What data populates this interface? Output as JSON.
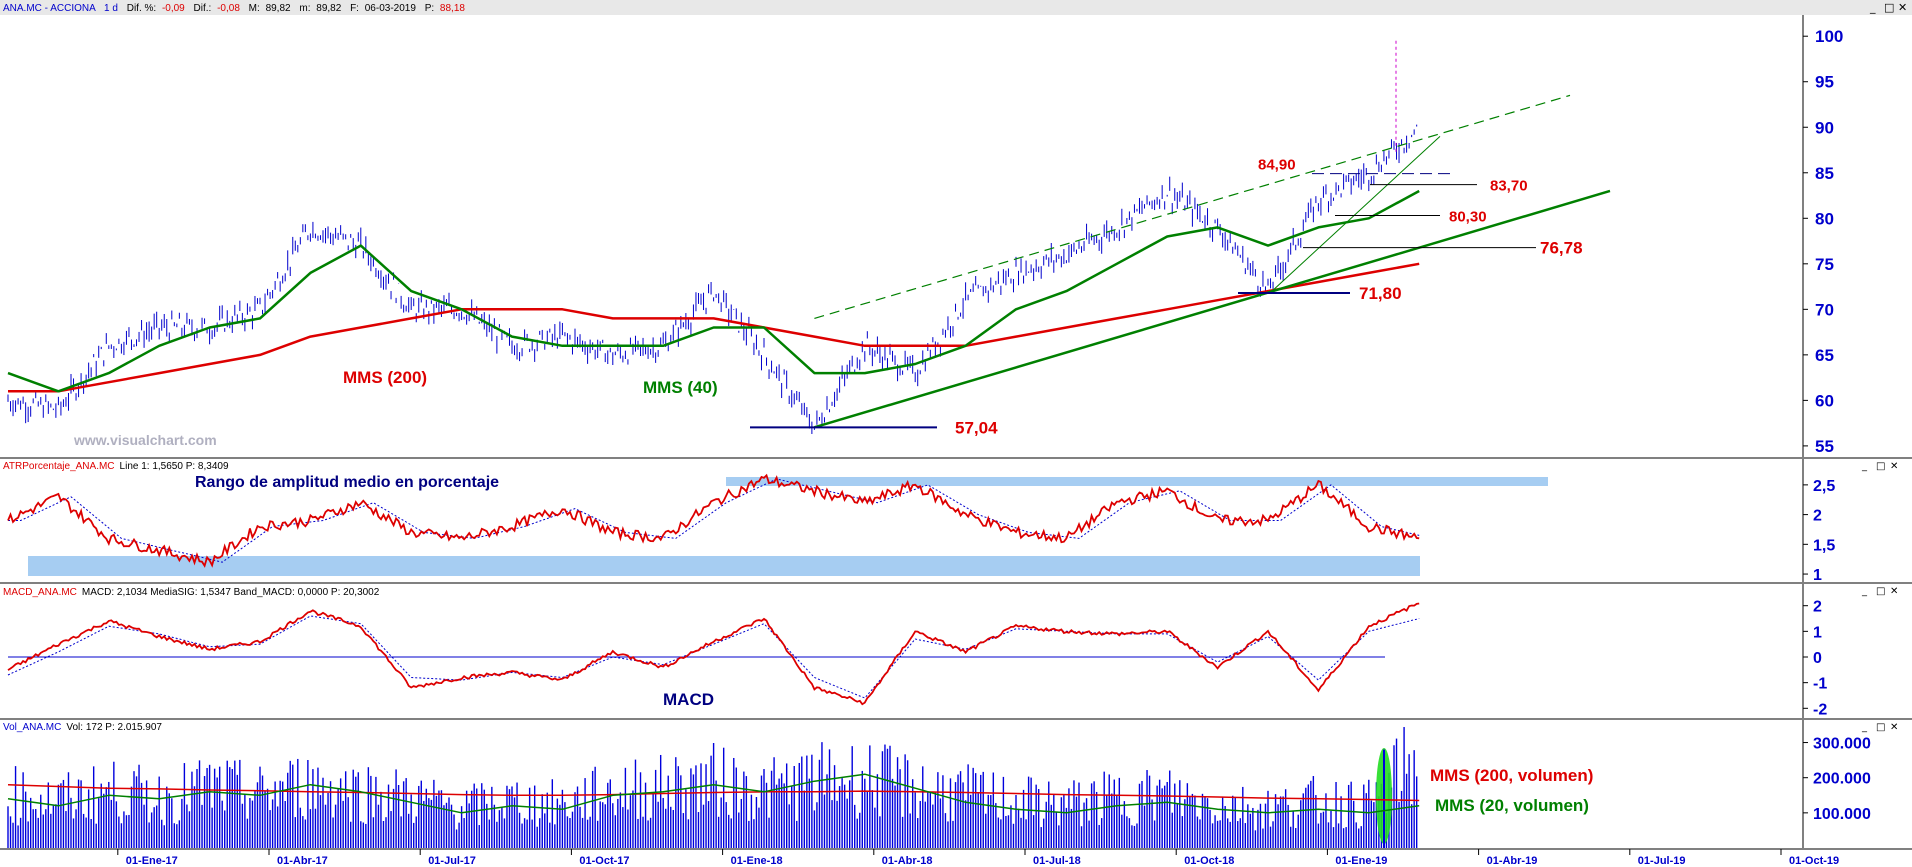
{
  "header": {
    "symbol": "ANA.MC - ACCIONA",
    "period": "1 d",
    "dif_pct_label": "Dif. %:",
    "dif_pct": "-0,09",
    "dif_label": "Dif.:",
    "dif": "-0,08",
    "max_label": "M:",
    "max": "89,82",
    "min_label": "m:",
    "min": "89,82",
    "date_label": "F:",
    "date": "06-03-2019",
    "price_label": "P:",
    "price": "88,18"
  },
  "panels": {
    "atr_title": "ATRPorcentaje_ANA.MC",
    "atr_values": "Line 1: 1,5650  P: 8,3409",
    "macd_title": "MACD_ANA.MC",
    "macd_values": "MACD: 2,1034 MediaSIG: 1,5347 Band_MACD: 0,0000 P: 20,3002",
    "vol_title": "Vol_ANA.MC",
    "vol_values": "Vol: 172  P: 2.015.907"
  },
  "window_controls": [
    "_",
    "□",
    "✕"
  ],
  "watermark": "www.visualchart.com",
  "annotations": {
    "mms200": "MMS (200)",
    "mms40": "MMS (40)",
    "atr_title": "Rango de amplitud medio en porcentaje",
    "macd": "MACD",
    "vol_mms200": "MMS (200, volumen)",
    "vol_mms20": "MMS (20, volumen)",
    "levels": [
      "84,90",
      "83,70",
      "80,30",
      "76,78",
      "71,80",
      "57,04"
    ]
  },
  "colors": {
    "price_bars": "#0000cc",
    "mms200": "#dd0000",
    "mms40": "#008000",
    "trendline": "#008000",
    "levels_text": "#dd0000",
    "axis_text": "#0000cc",
    "band": "#a6cdf2"
  },
  "chart_data": [
    {
      "type": "line",
      "title": "",
      "x_tick_labels": [
        "01-Ene-17",
        "01-Abr-17",
        "01-Jul-17",
        "01-Oct-17",
        "01-Ene-18",
        "01-Abr-18",
        "01-Jul-18",
        "01-Oct-18",
        "01-Ene-19",
        "01-Abr-19",
        "01-Jul-19",
        "01-Oct-19"
      ],
      "y_ticks": [
        55,
        60,
        65,
        70,
        75,
        80,
        85,
        90,
        95,
        100
      ],
      "ylim": [
        54,
        102
      ],
      "series": [
        {
          "name": "Price (bars)",
          "x": [
            "2016-11",
            "2016-12",
            "2017-01",
            "2017-02",
            "2017-03",
            "2017-04",
            "2017-05",
            "2017-06",
            "2017-07",
            "2017-08",
            "2017-09",
            "2017-10",
            "2017-11",
            "2017-12",
            "2018-01",
            "2018-02",
            "2018-03",
            "2018-04",
            "2018-05",
            "2018-06",
            "2018-07",
            "2018-08",
            "2018-09",
            "2018-10",
            "2018-11",
            "2018-12",
            "2019-01",
            "2019-02",
            "2019-03"
          ],
          "values": [
            60,
            59,
            66,
            68,
            68,
            70,
            79,
            77,
            70,
            70,
            66,
            67,
            65,
            66,
            72,
            65,
            57,
            66,
            63,
            71,
            74,
            76,
            79,
            83,
            79,
            72,
            82,
            85,
            90
          ]
        },
        {
          "name": "MMS (200)",
          "values": [
            61,
            61,
            62,
            63,
            64,
            65,
            67,
            68,
            69,
            70,
            70,
            70,
            69,
            69,
            69,
            68,
            67,
            66,
            66,
            66,
            67,
            68,
            69,
            70,
            71,
            72,
            73,
            74,
            75
          ]
        },
        {
          "name": "MMS (40)",
          "values": [
            63,
            61,
            63,
            66,
            68,
            69,
            74,
            77,
            72,
            70,
            67,
            66,
            66,
            66,
            68,
            68,
            63,
            63,
            64,
            66,
            70,
            72,
            75,
            78,
            79,
            77,
            79,
            80,
            83
          ]
        }
      ],
      "levels": [
        57.04,
        71.8,
        76.78,
        80.3,
        83.7,
        84.9
      ]
    },
    {
      "type": "line",
      "title": "ATRPorcentaje_ANA.MC",
      "y_ticks": [
        1,
        1.5,
        2,
        2.5
      ],
      "ylim": [
        0.9,
        2.75
      ],
      "series": [
        {
          "name": "Line 1",
          "values": [
            1.9,
            2.3,
            1.6,
            1.4,
            1.2,
            1.8,
            1.9,
            2.2,
            1.7,
            1.6,
            1.8,
            2.1,
            1.7,
            1.6,
            2.2,
            2.6,
            2.4,
            2.2,
            2.5,
            2.0,
            1.7,
            1.6,
            2.2,
            2.4,
            1.9,
            1.9,
            2.5,
            1.8,
            1.6
          ]
        }
      ]
    },
    {
      "type": "line",
      "title": "MACD_ANA.MC",
      "y_ticks": [
        -2,
        -1,
        0,
        1,
        2
      ],
      "ylim": [
        -2.3,
        2.3
      ],
      "series": [
        {
          "name": "MACD",
          "values": [
            -0.5,
            0.5,
            1.4,
            0.8,
            0.3,
            0.6,
            1.8,
            1.2,
            -1.2,
            -0.8,
            -0.6,
            -0.9,
            0.2,
            -0.4,
            0.6,
            1.5,
            -1.2,
            -1.8,
            1.0,
            0.2,
            1.2,
            1.0,
            0.9,
            1.0,
            -0.4,
            1.0,
            -1.3,
            1.2,
            2.1
          ]
        },
        {
          "name": "MediaSIG",
          "values": [
            -0.7,
            0.2,
            1.2,
            0.9,
            0.4,
            0.5,
            1.6,
            1.3,
            -0.8,
            -0.9,
            -0.6,
            -0.8,
            0.0,
            -0.3,
            0.5,
            1.3,
            -0.8,
            -1.6,
            0.7,
            0.3,
            1.1,
            1.0,
            0.9,
            0.9,
            -0.2,
            0.8,
            -0.9,
            1.0,
            1.5
          ]
        }
      ],
      "reference_line": 0
    },
    {
      "type": "bar",
      "title": "Vol_ANA.MC",
      "y_ticks": [
        100000,
        200000,
        300000
      ],
      "y_tick_labels": [
        "100.000",
        "200.000",
        "300.000"
      ],
      "ylim": [
        0,
        330000
      ],
      "series": [
        {
          "name": "Vol",
          "values": [
            160000,
            140000,
            170000,
            150000,
            180000,
            160000,
            190000,
            170000,
            150000,
            120000,
            140000,
            130000,
            170000,
            180000,
            200000,
            170000,
            200000,
            210000,
            180000,
            160000,
            140000,
            130000,
            150000,
            160000,
            130000,
            120000,
            140000,
            130000,
            280000
          ]
        },
        {
          "name": "MMS (200, volumen)",
          "values": [
            180000,
            175000,
            170000,
            168000,
            165000,
            163000,
            160000,
            158000,
            155000,
            152000,
            150000,
            150000,
            152000,
            155000,
            158000,
            160000,
            160000,
            162000,
            160000,
            158000,
            155000,
            152000,
            150000,
            148000,
            145000,
            142000,
            140000,
            138000,
            135000
          ]
        },
        {
          "name": "MMS (20, volumen)",
          "values": [
            140000,
            120000,
            150000,
            140000,
            160000,
            150000,
            180000,
            160000,
            130000,
            100000,
            120000,
            110000,
            150000,
            160000,
            180000,
            160000,
            190000,
            210000,
            170000,
            130000,
            110000,
            100000,
            120000,
            130000,
            110000,
            100000,
            110000,
            100000,
            120000
          ]
        }
      ]
    }
  ]
}
